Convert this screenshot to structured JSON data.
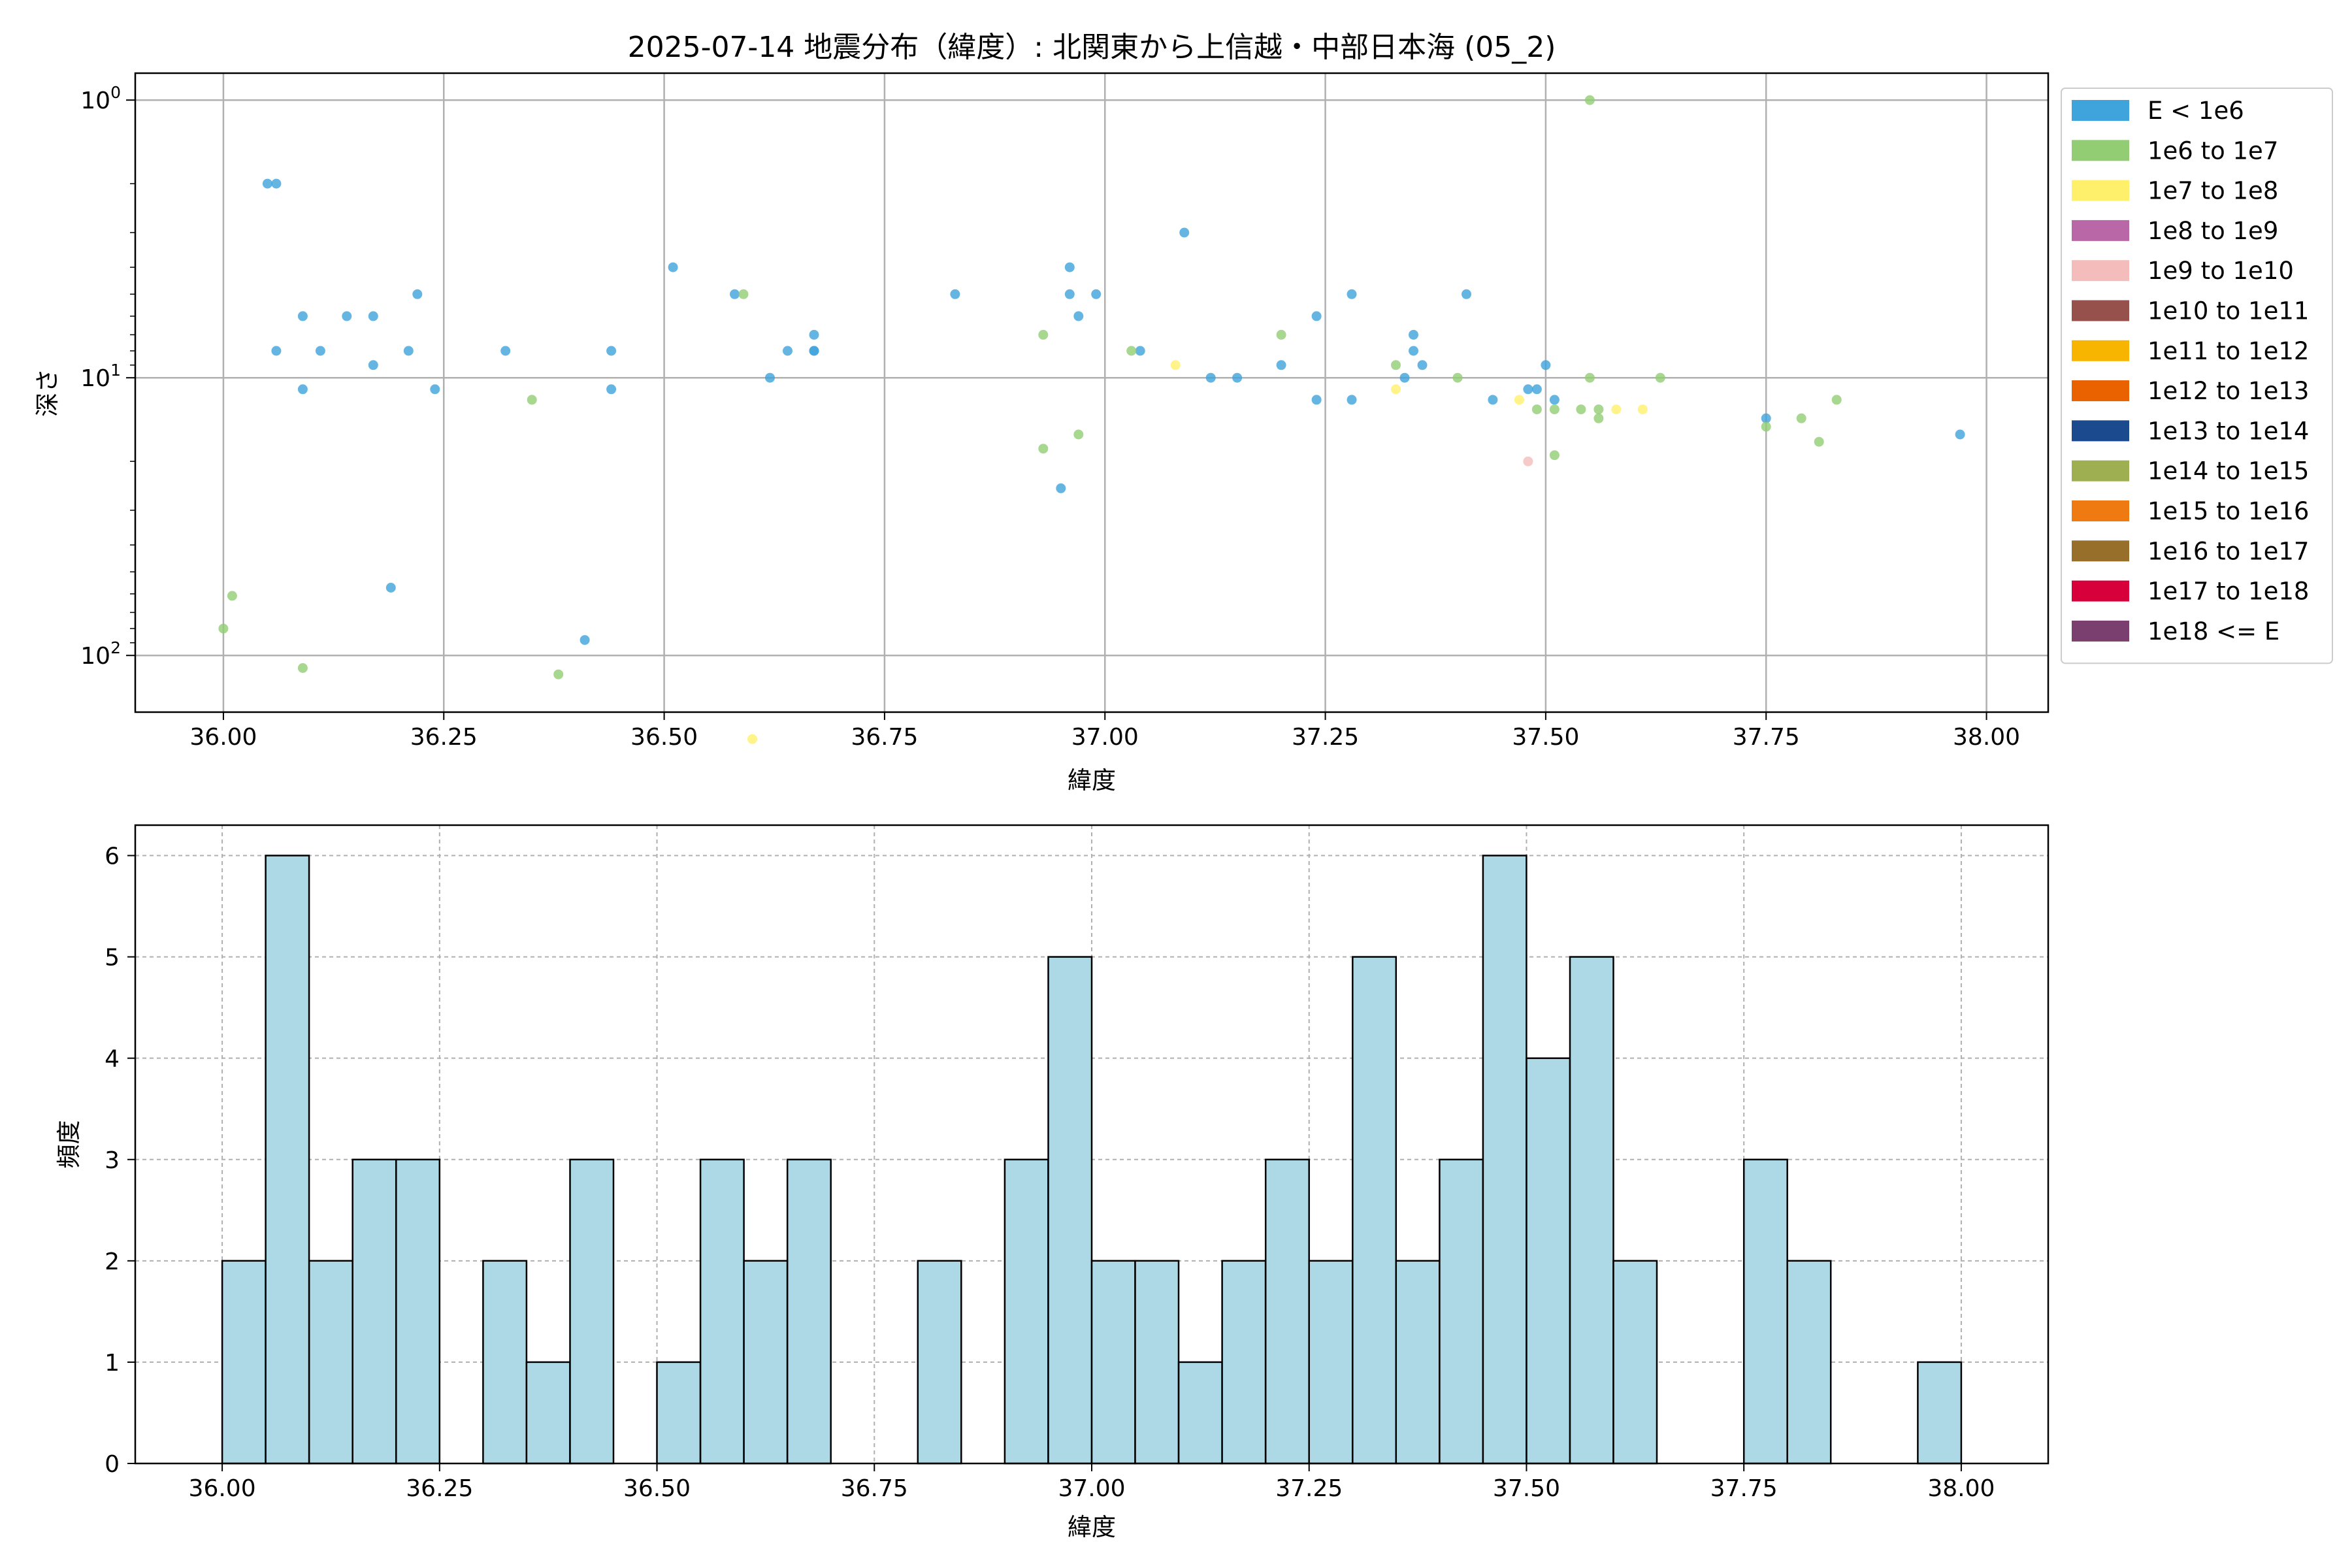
{
  "chart_data": [
    {
      "type": "scatter",
      "title": "2025-07-14 地震分布（緯度）: 北関東から上信越・中部日本海 (05_2)",
      "xlabel": "緯度",
      "ylabel": "深さ",
      "xlim": [
        35.9,
        38.07
      ],
      "ylim": [
        160,
        0.8
      ],
      "yscale": "log",
      "y_inverted": true,
      "x_ticks": [
        "36.00",
        "36.25",
        "36.50",
        "36.75",
        "37.00",
        "37.25",
        "37.50",
        "37.75",
        "38.00"
      ],
      "x_tick_values": [
        36.0,
        36.25,
        36.5,
        36.75,
        37.0,
        37.25,
        37.5,
        37.75,
        38.0
      ],
      "y_ticks": [
        {
          "value": 1,
          "mantissa": "10",
          "exp": "0"
        },
        {
          "value": 10,
          "mantissa": "10",
          "exp": "1"
        },
        {
          "value": 100,
          "mantissa": "10",
          "exp": "2"
        }
      ],
      "grid": true,
      "legend_position": "outside-right",
      "legend": [
        {
          "label": "E < 1e6",
          "color": "#3fa3dc"
        },
        {
          "label": "1e6 to 1e7",
          "color": "#92cd73"
        },
        {
          "label": "1e7 to 1e8",
          "color": "#fff06c"
        },
        {
          "label": "1e8 to 1e9",
          "color": "#b967a6"
        },
        {
          "label": "1e9 to 1e10",
          "color": "#f4bdbb"
        },
        {
          "label": "1e10 to 1e11",
          "color": "#96514d"
        },
        {
          "label": "1e11 to 1e12",
          "color": "#f8b500"
        },
        {
          "label": "1e12 to 1e13",
          "color": "#ea6100"
        },
        {
          "label": "1e13 to 1e14",
          "color": "#1b4a8f"
        },
        {
          "label": "1e14 to 1e15",
          "color": "#9daf51"
        },
        {
          "label": "1e15 to 1e16",
          "color": "#ef7a11"
        },
        {
          "label": "1e16 to 1e17",
          "color": "#976f2b"
        },
        {
          "label": "1e17 to 1e18",
          "color": "#d7003a"
        },
        {
          "label": "1e18 <= E",
          "color": "#7b3f6f"
        }
      ],
      "series": [
        {
          "name": "E < 1e6",
          "color": "#3fa3dc",
          "points": [
            [
              36.05,
              2.0
            ],
            [
              36.06,
              2.0
            ],
            [
              36.06,
              8.0
            ],
            [
              36.09,
              6.0
            ],
            [
              36.09,
              11.0
            ],
            [
              36.11,
              8.0
            ],
            [
              36.14,
              6.0
            ],
            [
              36.17,
              6.0
            ],
            [
              36.17,
              9.0
            ],
            [
              36.19,
              57.0
            ],
            [
              36.21,
              8.0
            ],
            [
              36.22,
              5.0
            ],
            [
              36.24,
              11.0
            ],
            [
              36.32,
              8.0
            ],
            [
              36.41,
              88.0
            ],
            [
              36.44,
              11.0
            ],
            [
              36.44,
              8.0
            ],
            [
              36.51,
              4.0
            ],
            [
              36.58,
              5.0
            ],
            [
              36.62,
              10.0
            ],
            [
              36.64,
              8.0
            ],
            [
              36.67,
              7.0
            ],
            [
              36.67,
              8.0
            ],
            [
              36.67,
              8.0
            ],
            [
              36.83,
              5.0
            ],
            [
              36.95,
              25.0
            ],
            [
              36.96,
              4.0
            ],
            [
              36.96,
              5.0
            ],
            [
              36.97,
              6.0
            ],
            [
              36.99,
              5.0
            ],
            [
              37.04,
              8.0
            ],
            [
              37.09,
              3.0
            ],
            [
              37.12,
              10.0
            ],
            [
              37.15,
              10.0
            ],
            [
              37.2,
              9.0
            ],
            [
              37.24,
              6.0
            ],
            [
              37.24,
              12.0
            ],
            [
              37.28,
              5.0
            ],
            [
              37.28,
              12.0
            ],
            [
              37.34,
              10.0
            ],
            [
              37.35,
              7.0
            ],
            [
              37.35,
              8.0
            ],
            [
              37.36,
              9.0
            ],
            [
              37.41,
              5.0
            ],
            [
              37.44,
              12.0
            ],
            [
              37.48,
              11.0
            ],
            [
              37.49,
              11.0
            ],
            [
              37.5,
              9.0
            ],
            [
              37.51,
              12.0
            ],
            [
              37.75,
              14.0
            ],
            [
              37.97,
              16.0
            ]
          ]
        },
        {
          "name": "1e6 to 1e7",
          "color": "#92cd73",
          "points": [
            [
              36.0,
              80.0
            ],
            [
              36.01,
              61.0
            ],
            [
              36.09,
              111.0
            ],
            [
              36.35,
              12.0
            ],
            [
              36.38,
              117.0
            ],
            [
              36.59,
              5.0
            ],
            [
              36.93,
              7.0
            ],
            [
              36.93,
              18.0
            ],
            [
              36.97,
              16.0
            ],
            [
              37.03,
              8.0
            ],
            [
              37.2,
              7.0
            ],
            [
              37.33,
              9.0
            ],
            [
              37.4,
              10.0
            ],
            [
              37.49,
              13.0
            ],
            [
              37.51,
              13.0
            ],
            [
              37.51,
              19.0
            ],
            [
              37.54,
              13.0
            ],
            [
              37.55,
              1.0
            ],
            [
              37.55,
              10.0
            ],
            [
              37.56,
              13.0
            ],
            [
              37.56,
              14.0
            ],
            [
              37.63,
              10.0
            ],
            [
              37.75,
              15.0
            ],
            [
              37.79,
              14.0
            ],
            [
              37.81,
              17.0
            ],
            [
              37.83,
              12.0
            ]
          ]
        },
        {
          "name": "1e7 to 1e8",
          "color": "#fff06c",
          "points": [
            [
              36.6,
              200.0
            ],
            [
              37.08,
              9.0
            ],
            [
              37.33,
              11.0
            ],
            [
              37.47,
              12.0
            ],
            [
              37.58,
              13.0
            ],
            [
              37.61,
              13.0
            ]
          ]
        },
        {
          "name": "1e9 to 1e10",
          "color": "#f4bdbb",
          "points": [
            [
              37.48,
              20.0
            ]
          ]
        }
      ]
    },
    {
      "type": "bar",
      "subtype": "histogram",
      "xlabel": "緯度",
      "ylabel": "頻度",
      "xlim": [
        35.9,
        38.1
      ],
      "ylim": [
        0,
        6.3
      ],
      "bin_width": 0.05,
      "x_ticks": [
        "36.00",
        "36.25",
        "36.50",
        "36.75",
        "37.00",
        "37.25",
        "37.50",
        "37.75",
        "38.00"
      ],
      "x_tick_values": [
        36.0,
        36.25,
        36.5,
        36.75,
        37.0,
        37.25,
        37.5,
        37.75,
        38.0
      ],
      "y_ticks": [
        "0",
        "1",
        "2",
        "3",
        "4",
        "5",
        "6"
      ],
      "grid": true,
      "bar_color": "#add8e6",
      "bins": [
        {
          "x0": 36.0,
          "count": 2
        },
        {
          "x0": 36.05,
          "count": 6
        },
        {
          "x0": 36.1,
          "count": 2
        },
        {
          "x0": 36.15,
          "count": 3
        },
        {
          "x0": 36.2,
          "count": 3
        },
        {
          "x0": 36.3,
          "count": 2
        },
        {
          "x0": 36.35,
          "count": 1
        },
        {
          "x0": 36.4,
          "count": 3
        },
        {
          "x0": 36.5,
          "count": 1
        },
        {
          "x0": 36.55,
          "count": 3
        },
        {
          "x0": 36.6,
          "count": 2
        },
        {
          "x0": 36.65,
          "count": 3
        },
        {
          "x0": 36.8,
          "count": 2
        },
        {
          "x0": 36.9,
          "count": 3
        },
        {
          "x0": 36.95,
          "count": 5
        },
        {
          "x0": 37.0,
          "count": 2
        },
        {
          "x0": 37.05,
          "count": 2
        },
        {
          "x0": 37.1,
          "count": 1
        },
        {
          "x0": 37.15,
          "count": 2
        },
        {
          "x0": 37.2,
          "count": 3
        },
        {
          "x0": 37.25,
          "count": 2
        },
        {
          "x0": 37.3,
          "count": 5
        },
        {
          "x0": 37.35,
          "count": 2
        },
        {
          "x0": 37.4,
          "count": 3
        },
        {
          "x0": 37.45,
          "count": 6
        },
        {
          "x0": 37.5,
          "count": 4
        },
        {
          "x0": 37.55,
          "count": 5
        },
        {
          "x0": 37.6,
          "count": 2
        },
        {
          "x0": 37.75,
          "count": 3
        },
        {
          "x0": 37.8,
          "count": 2
        },
        {
          "x0": 37.95,
          "count": 1
        }
      ]
    }
  ]
}
